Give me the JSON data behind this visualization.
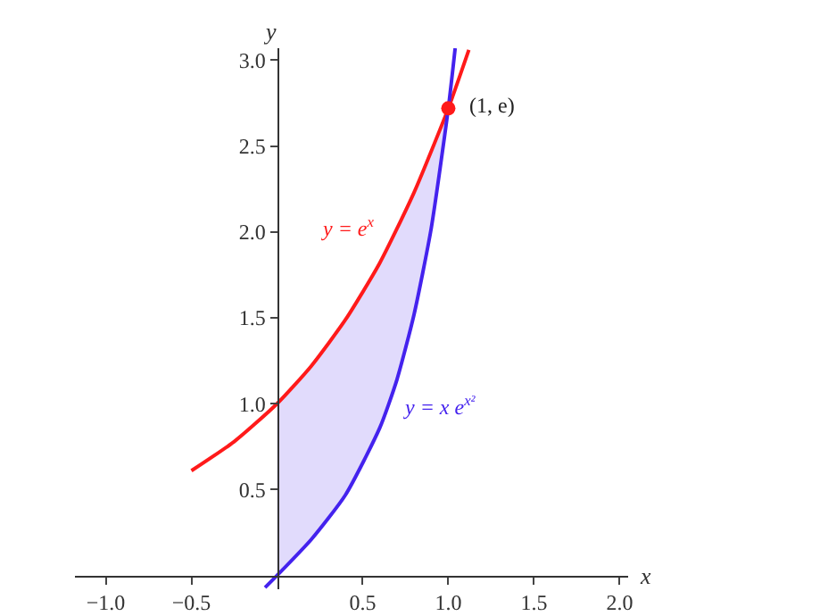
{
  "chart_data": {
    "type": "line",
    "xlabel": "x",
    "ylabel": "y",
    "xlim": [
      -1.18,
      2.05
    ],
    "ylim": [
      -0.08,
      3.07
    ],
    "xticks": [
      {
        "value": -1,
        "label": "−1.0"
      },
      {
        "value": -0.5,
        "label": "−0.5"
      },
      0.5,
      {
        "value": 1,
        "label": "1.0"
      },
      1.5,
      {
        "value": 2,
        "label": "2.0"
      }
    ],
    "yticks": [
      0.5,
      {
        "value": 1,
        "label": "1.0"
      },
      1.5,
      {
        "value": 2,
        "label": "2.0"
      },
      2.5,
      {
        "value": 3,
        "label": "3.0"
      }
    ],
    "grid": false,
    "legend": false,
    "marker": "none",
    "line_style": "solid",
    "series": [
      {
        "color": "#ff1a1a",
        "x": [
          -0.5,
          -0.25,
          0,
          0.2,
          0.4,
          0.6,
          0.8,
          1.0,
          1.12
        ],
        "values": [
          0.61,
          0.78,
          1.0,
          1.22,
          1.49,
          1.82,
          2.23,
          2.72,
          3.06
        ]
      },
      {
        "color": "#4422ee",
        "x": [
          -0.07,
          0,
          0.2,
          0.4,
          0.6,
          0.7,
          0.8,
          0.9,
          1.0,
          1.04
        ],
        "values": [
          -0.07,
          0,
          0.21,
          0.47,
          0.86,
          1.14,
          1.52,
          2.02,
          2.72,
          3.07
        ],
        "lower": [
          null,
          0,
          0.21,
          0.47,
          0.86,
          1.14,
          1.52,
          2.02,
          2.72,
          null
        ],
        "upper": [
          null,
          1.0,
          1.22,
          1.49,
          1.82,
          2.01,
          2.23,
          2.46,
          2.72,
          null
        ]
      },
      {
        "type": "scatter",
        "color": "#ff1a1a",
        "marker": "circle",
        "x": [
          1.0
        ],
        "values": [
          2.72
        ]
      }
    ],
    "annotations": [
      {
        "text": "(1, e)",
        "x": 1.0,
        "y": 2.72
      },
      "y = e$^{x}$",
      "y = x e$^{x²}$"
    ]
  }
}
